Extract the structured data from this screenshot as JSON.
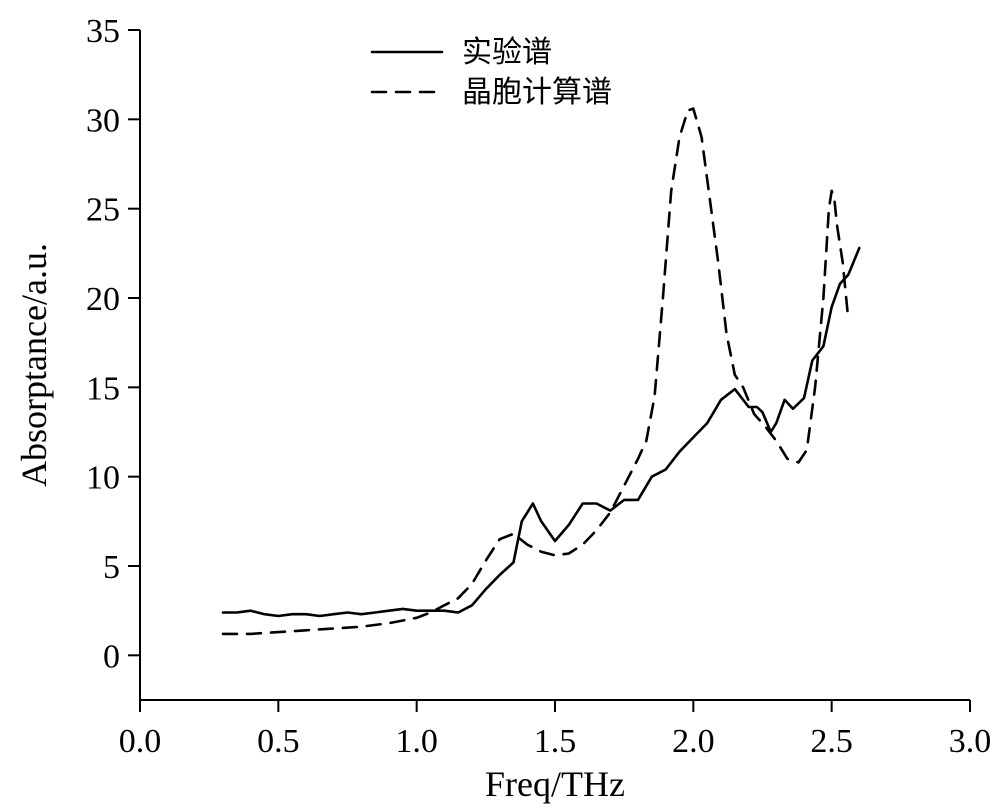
{
  "chart_data": {
    "type": "line",
    "xlabel": "Freq/THz",
    "ylabel": "Absorptance/a.u.",
    "xlim": [
      0.0,
      3.0
    ],
    "ylim": [
      -2.5,
      35
    ],
    "xticks": [
      0.0,
      0.5,
      1.0,
      1.5,
      2.0,
      2.5,
      3.0
    ],
    "xtick_labels": [
      "0.0",
      "0.5",
      "1.0",
      "1.5",
      "2.0",
      "2.5",
      "3.0"
    ],
    "yticks": [
      0,
      5,
      10,
      15,
      20,
      25,
      30,
      35
    ],
    "ytick_labels": [
      "0",
      "5",
      "10",
      "15",
      "20",
      "25",
      "30",
      "35"
    ],
    "grid": false,
    "legend_position": "top-center",
    "series": [
      {
        "name": "实验谱",
        "style": "solid",
        "color": "#000000",
        "points": [
          [
            0.3,
            2.4
          ],
          [
            0.35,
            2.4
          ],
          [
            0.4,
            2.5
          ],
          [
            0.45,
            2.3
          ],
          [
            0.5,
            2.2
          ],
          [
            0.55,
            2.3
          ],
          [
            0.6,
            2.3
          ],
          [
            0.65,
            2.2
          ],
          [
            0.7,
            2.3
          ],
          [
            0.75,
            2.4
          ],
          [
            0.8,
            2.3
          ],
          [
            0.85,
            2.4
          ],
          [
            0.9,
            2.5
          ],
          [
            0.95,
            2.6
          ],
          [
            1.0,
            2.5
          ],
          [
            1.05,
            2.5
          ],
          [
            1.1,
            2.5
          ],
          [
            1.15,
            2.4
          ],
          [
            1.2,
            2.8
          ],
          [
            1.25,
            3.7
          ],
          [
            1.3,
            4.5
          ],
          [
            1.35,
            5.2
          ],
          [
            1.38,
            7.5
          ],
          [
            1.42,
            8.5
          ],
          [
            1.45,
            7.5
          ],
          [
            1.5,
            6.4
          ],
          [
            1.55,
            7.3
          ],
          [
            1.6,
            8.5
          ],
          [
            1.65,
            8.5
          ],
          [
            1.7,
            8.1
          ],
          [
            1.75,
            8.7
          ],
          [
            1.8,
            8.7
          ],
          [
            1.85,
            10.0
          ],
          [
            1.9,
            10.4
          ],
          [
            1.95,
            11.4
          ],
          [
            2.0,
            12.2
          ],
          [
            2.05,
            13.0
          ],
          [
            2.1,
            14.3
          ],
          [
            2.15,
            14.9
          ],
          [
            2.2,
            13.9
          ],
          [
            2.23,
            13.9
          ],
          [
            2.25,
            13.6
          ],
          [
            2.28,
            12.5
          ],
          [
            2.3,
            13.0
          ],
          [
            2.33,
            14.3
          ],
          [
            2.36,
            13.8
          ],
          [
            2.4,
            14.4
          ],
          [
            2.43,
            16.5
          ],
          [
            2.47,
            17.3
          ],
          [
            2.5,
            19.5
          ],
          [
            2.53,
            20.8
          ],
          [
            2.56,
            21.3
          ],
          [
            2.6,
            22.8
          ]
        ]
      },
      {
        "name": "晶胞计算谱",
        "style": "dashed",
        "color": "#000000",
        "points": [
          [
            0.3,
            1.2
          ],
          [
            0.4,
            1.2
          ],
          [
            0.5,
            1.3
          ],
          [
            0.6,
            1.4
          ],
          [
            0.7,
            1.5
          ],
          [
            0.8,
            1.6
          ],
          [
            0.9,
            1.8
          ],
          [
            1.0,
            2.1
          ],
          [
            1.05,
            2.4
          ],
          [
            1.1,
            2.8
          ],
          [
            1.15,
            3.2
          ],
          [
            1.2,
            4.0
          ],
          [
            1.25,
            5.3
          ],
          [
            1.3,
            6.5
          ],
          [
            1.35,
            6.8
          ],
          [
            1.4,
            6.2
          ],
          [
            1.45,
            5.8
          ],
          [
            1.5,
            5.6
          ],
          [
            1.55,
            5.7
          ],
          [
            1.6,
            6.2
          ],
          [
            1.65,
            7.0
          ],
          [
            1.7,
            8.0
          ],
          [
            1.75,
            9.5
          ],
          [
            1.8,
            11.0
          ],
          [
            1.83,
            12.0
          ],
          [
            1.86,
            14.5
          ],
          [
            1.89,
            20.0
          ],
          [
            1.92,
            26.0
          ],
          [
            1.95,
            29.0
          ],
          [
            1.98,
            30.5
          ],
          [
            2.0,
            30.6
          ],
          [
            2.03,
            29.0
          ],
          [
            2.06,
            25.5
          ],
          [
            2.09,
            22.0
          ],
          [
            2.12,
            18.0
          ],
          [
            2.15,
            15.7
          ],
          [
            2.18,
            15.0
          ],
          [
            2.22,
            13.5
          ],
          [
            2.26,
            12.8
          ],
          [
            2.3,
            12.0
          ],
          [
            2.34,
            11.0
          ],
          [
            2.38,
            10.8
          ],
          [
            2.41,
            11.5
          ],
          [
            2.44,
            15.0
          ],
          [
            2.47,
            20.0
          ],
          [
            2.49,
            25.0
          ],
          [
            2.5,
            26.0
          ],
          [
            2.51,
            25.5
          ],
          [
            2.52,
            24.0
          ],
          [
            2.54,
            22.0
          ],
          [
            2.56,
            18.8
          ]
        ]
      }
    ]
  }
}
